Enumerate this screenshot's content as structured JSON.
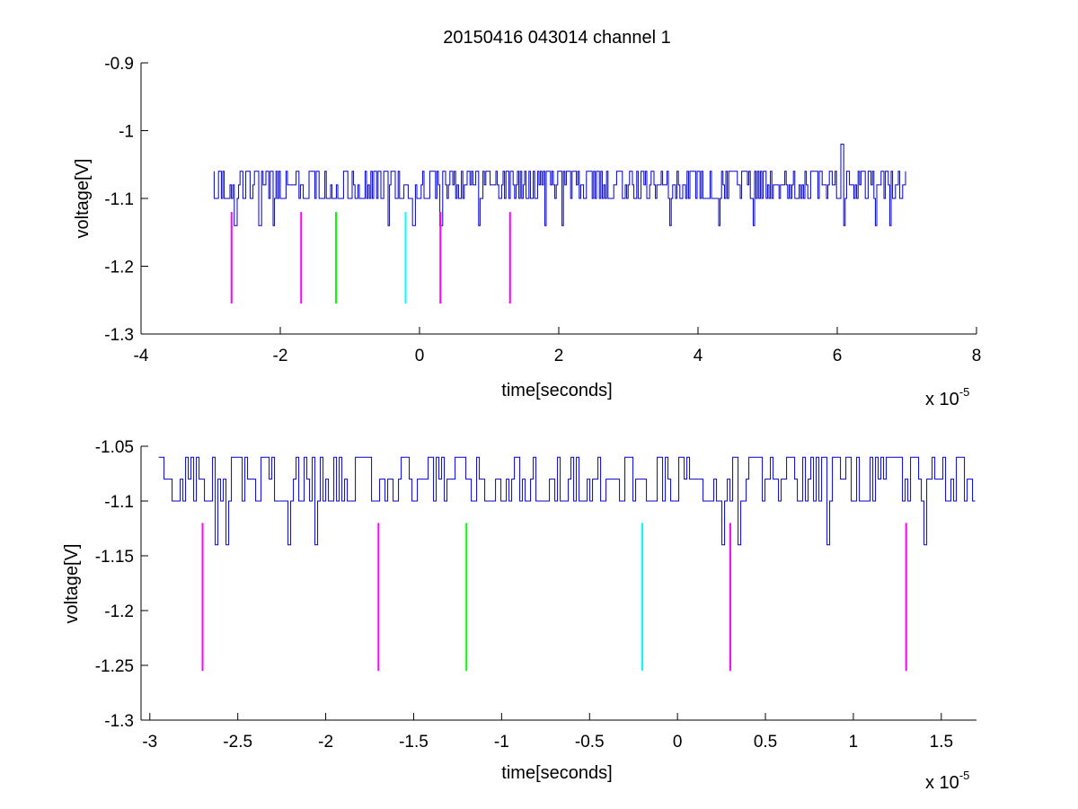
{
  "figure_title": "20150416 043014 channel 1",
  "chart_data": [
    {
      "type": "line",
      "title": "20150416 043014 channel 1",
      "xlabel": "time[seconds]",
      "ylabel": "voltage[V]",
      "x_multiplier": "x 10",
      "x_multiplier_exponent": "-5",
      "xlim": [
        -4,
        8
      ],
      "ylim": [
        -1.3,
        -0.9
      ],
      "xticks": [
        -4,
        -2,
        0,
        2,
        4,
        6,
        8
      ],
      "xtick_labels": [
        "-4",
        "-2",
        "0",
        "2",
        "4",
        "6",
        "8"
      ],
      "yticks": [
        -1.3,
        -1.2,
        -1.1,
        -1.0,
        -0.9
      ],
      "ytick_labels": [
        "-1.3",
        "-1.2",
        "-1.1",
        "-1",
        "-0.9"
      ],
      "grid": false,
      "signal": {
        "color": "#0000cc",
        "x_start": -2.95,
        "x_end": 7.0,
        "levels": [
          -1.06,
          -1.08,
          -1.1
        ],
        "baseline": -1.1,
        "dips": [
          [
            -2.65,
            -1.14
          ],
          [
            -2.3,
            -1.14
          ],
          [
            -2.1,
            -1.14
          ],
          [
            -0.45,
            -1.14
          ],
          [
            -0.1,
            -1.14
          ],
          [
            0.3,
            -1.14
          ],
          [
            0.85,
            -1.14
          ],
          [
            1.8,
            -1.14
          ],
          [
            2.05,
            -1.14
          ],
          [
            3.6,
            -1.14
          ],
          [
            4.3,
            -1.14
          ],
          [
            4.8,
            -1.14
          ],
          [
            6.1,
            -1.14
          ],
          [
            6.55,
            -1.14
          ],
          [
            6.75,
            -1.14
          ]
        ],
        "spikes": [
          [
            6.05,
            -1.02
          ]
        ]
      },
      "markers": [
        {
          "x": -2.7,
          "y_top": -1.12,
          "y_bottom": -1.255,
          "color": "#ff00ff"
        },
        {
          "x": -1.7,
          "y_top": -1.12,
          "y_bottom": -1.255,
          "color": "#ff00ff"
        },
        {
          "x": -1.2,
          "y_top": -1.12,
          "y_bottom": -1.255,
          "color": "#00ff00"
        },
        {
          "x": -0.2,
          "y_top": -1.12,
          "y_bottom": -1.255,
          "color": "#00ffff"
        },
        {
          "x": 0.3,
          "y_top": -1.12,
          "y_bottom": -1.255,
          "color": "#ff00ff"
        },
        {
          "x": 1.3,
          "y_top": -1.12,
          "y_bottom": -1.255,
          "color": "#ff00ff"
        }
      ]
    },
    {
      "type": "line",
      "xlabel": "time[seconds]",
      "ylabel": "voltage[V]",
      "x_multiplier": "x 10",
      "x_multiplier_exponent": "-5",
      "xlim": [
        -3.05,
        1.7
      ],
      "ylim": [
        -1.3,
        -1.05
      ],
      "xticks": [
        -3,
        -2.5,
        -2,
        -1.5,
        -1,
        -0.5,
        0,
        0.5,
        1,
        1.5
      ],
      "xtick_labels": [
        "-3",
        "-2.5",
        "-2",
        "-1.5",
        "-1",
        "-0.5",
        "0",
        "0.5",
        "1",
        "1.5"
      ],
      "yticks": [
        -1.3,
        -1.25,
        -1.2,
        -1.15,
        -1.1,
        -1.05
      ],
      "ytick_labels": [
        "-1.3",
        "-1.25",
        "-1.2",
        "-1.15",
        "-1.1",
        "-1.05"
      ],
      "grid": false,
      "signal": {
        "color": "#0000cc",
        "x_start": -2.95,
        "x_end": 1.7,
        "levels": [
          -1.06,
          -1.08,
          -1.1
        ],
        "baseline": -1.1,
        "dips": [
          [
            -2.63,
            -1.14
          ],
          [
            -2.57,
            -1.14
          ],
          [
            -2.22,
            -1.14
          ],
          [
            -2.06,
            -1.14
          ],
          [
            0.25,
            -1.14
          ],
          [
            0.35,
            -1.14
          ],
          [
            0.85,
            -1.14
          ],
          [
            1.4,
            -1.14
          ]
        ],
        "spikes": []
      },
      "markers": [
        {
          "x": -2.7,
          "y_top": -1.12,
          "y_bottom": -1.255,
          "color": "#ff00ff"
        },
        {
          "x": -1.7,
          "y_top": -1.12,
          "y_bottom": -1.255,
          "color": "#ff00ff"
        },
        {
          "x": -1.2,
          "y_top": -1.12,
          "y_bottom": -1.255,
          "color": "#00ff00"
        },
        {
          "x": -0.2,
          "y_top": -1.12,
          "y_bottom": -1.255,
          "color": "#00ffff"
        },
        {
          "x": 0.3,
          "y_top": -1.12,
          "y_bottom": -1.255,
          "color": "#ff00ff"
        },
        {
          "x": 1.3,
          "y_top": -1.12,
          "y_bottom": -1.255,
          "color": "#ff00ff"
        }
      ]
    }
  ]
}
